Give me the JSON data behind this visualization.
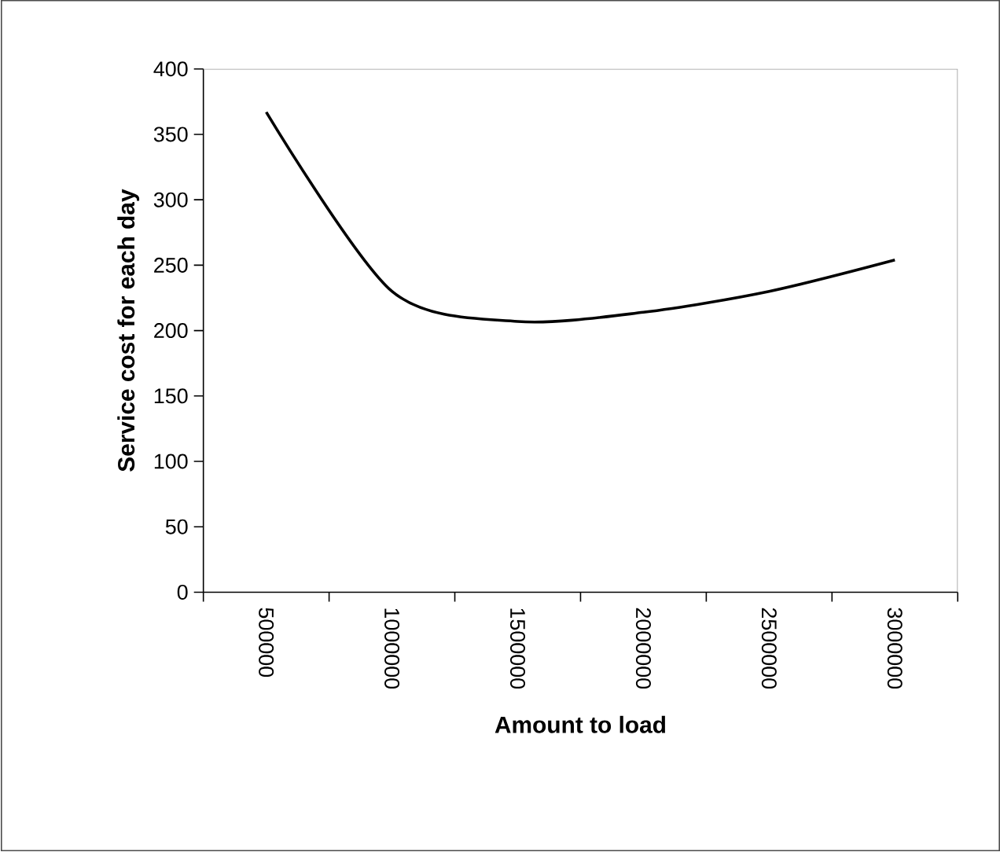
{
  "chart_data": {
    "type": "line",
    "xlabel": "Amount to load",
    "ylabel": "Service cost for each day",
    "categories": [
      "500000",
      "1000000",
      "1500000",
      "2000000",
      "2500000",
      "3000000"
    ],
    "series": [
      {
        "color": "#000000",
        "values": [
          367,
          230,
          207,
          214,
          230,
          254
        ]
      }
    ],
    "ylim": [
      0,
      400
    ],
    "yticks": [
      0,
      50,
      100,
      150,
      200,
      250,
      300,
      350,
      400
    ],
    "marker": "none",
    "line_style": "solid"
  }
}
